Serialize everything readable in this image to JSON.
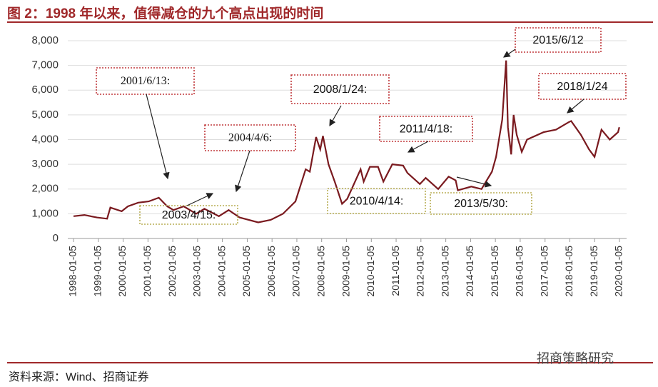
{
  "chart_data": {
    "type": "line",
    "title": "图 2：1998 年以来，值得减仓的九个高点出现的时间",
    "source": "资料来源：Wind、招商证券",
    "watermark": "招商策略研究",
    "ylim": [
      0,
      8000
    ],
    "yticks": [
      0,
      {
        "value": 1000,
        "label": "1,000"
      },
      {
        "value": 2000,
        "label": "2,000"
      },
      {
        "value": 3000,
        "label": "3,000"
      },
      {
        "value": 4000,
        "label": "4,000"
      },
      {
        "value": 5000,
        "label": "5,000"
      },
      {
        "value": 6000,
        "label": "6,000"
      },
      {
        "value": 7000,
        "label": "7,000"
      },
      {
        "value": 8000,
        "label": "8,000"
      }
    ],
    "xlim": [
      "1998-01-05",
      "2020-01-05"
    ],
    "xticks": [
      "1998-01-05",
      "1999-01-05",
      "2000-01-05",
      "2001-01-05",
      "2002-01-05",
      "2003-01-05",
      "2004-01-05",
      "2005-01-05",
      "2006-01-05",
      "2007-01-05",
      "2008-01-05",
      "2009-01-05",
      "2010-01-05",
      "2011-01-05",
      "2012-01-05",
      "2013-01-05",
      "2014-01-05",
      "2015-01-05",
      "2016-01-05",
      "2017-01-05",
      "2018-01-05",
      "2019-01-05",
      "2020-01-05"
    ],
    "grid": true,
    "x": [
      "1998-01-05",
      "1998-06-15",
      "1998-12-15",
      "1999-05-15",
      "1999-07-01",
      "1999-12-15",
      "2000-03-15",
      "2000-08-15",
      "2001-01-15",
      "2001-06-13",
      "2001-10-15",
      "2002-01-15",
      "2002-06-15",
      "2002-12-15",
      "2003-04-15",
      "2003-11-15",
      "2004-04-06",
      "2004-09-15",
      "2005-06-15",
      "2005-12-15",
      "2006-06-15",
      "2006-12-15",
      "2007-05-15",
      "2007-07-15",
      "2007-10-15",
      "2007-12-15",
      "2008-01-24",
      "2008-04-15",
      "2008-07-15",
      "2008-10-31",
      "2009-01-15",
      "2009-07-31",
      "2009-09-15",
      "2009-12-15",
      "2010-04-14",
      "2010-07-01",
      "2010-11-10",
      "2011-04-18",
      "2011-06-20",
      "2011-12-20",
      "2012-03-15",
      "2012-09-15",
      "2013-02-15",
      "2013-05-30",
      "2013-07-01",
      "2014-01-15",
      "2014-06-15",
      "2014-11-15",
      "2015-01-15",
      "2015-04-15",
      "2015-06-12",
      "2015-07-08",
      "2015-08-26",
      "2015-09-30",
      "2015-11-15",
      "2016-01-28",
      "2016-04-15",
      "2016-12-15",
      "2017-06-15",
      "2017-12-15",
      "2018-01-24",
      "2018-06-15",
      "2018-10-15",
      "2019-01-03",
      "2019-04-15",
      "2019-08-15",
      "2019-12-15",
      "2020-01-03"
    ],
    "series": [
      {
        "color": "#7a1a1f",
        "values": [
          900,
          950,
          850,
          800,
          1250,
          1100,
          1300,
          1450,
          1500,
          1650,
          1300,
          1150,
          1300,
          1000,
          1200,
          900,
          1150,
          850,
          650,
          750,
          1000,
          1500,
          2800,
          2700,
          4100,
          3600,
          4150,
          3000,
          2300,
          1400,
          1600,
          2800,
          2300,
          2900,
          2900,
          2300,
          3000,
          2950,
          2650,
          2200,
          2450,
          2000,
          2500,
          2350,
          1950,
          2100,
          2000,
          2700,
          3300,
          4800,
          7200,
          4500,
          3400,
          5000,
          4200,
          3500,
          4000,
          4300,
          4400,
          4700,
          4750,
          4200,
          3600,
          3300,
          4400,
          4000,
          4300,
          4500
        ]
      }
    ],
    "annotations": [
      "2001/6/13:",
      "2004/4/6:",
      "2008/1/24:",
      "2011/4/18:",
      "2015/6/12",
      "2018/1/24",
      "2003/4/15:",
      "2010/4/14:",
      "2013/5/30:"
    ]
  }
}
